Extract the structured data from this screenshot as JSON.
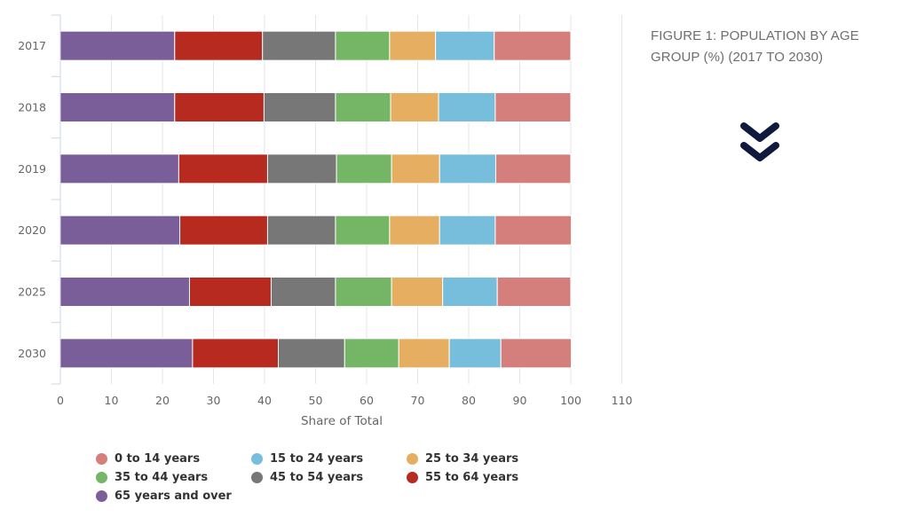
{
  "chart_data": {
    "type": "bar",
    "orientation": "horizontal",
    "stacked": true,
    "title": "FIGURE 1: POPULATION BY AGE GROUP (%) (2017 TO 2030)",
    "xlabel": "Share of Total",
    "ylabel": "",
    "xlim": [
      0,
      110
    ],
    "xticks": [
      "0",
      "10",
      "20",
      "30",
      "40",
      "50",
      "60",
      "70",
      "80",
      "90",
      "100",
      "110"
    ],
    "grid": true,
    "legend_position": "bottom",
    "categories": [
      "2017",
      "2018",
      "2019",
      "2020",
      "2025",
      "2030"
    ],
    "series": [
      {
        "name": "0 to 14 years",
        "color": "#d47f7b",
        "values": [
          15.0,
          14.8,
          14.7,
          14.9,
          14.4,
          13.8
        ]
      },
      {
        "name": "15 to 24 years",
        "color": "#77bddc",
        "values": [
          11.5,
          11.1,
          11.0,
          10.9,
          10.7,
          10.1
        ]
      },
      {
        "name": "25 to 34 years",
        "color": "#e6ae60",
        "values": [
          9.0,
          9.4,
          9.4,
          9.8,
          10.0,
          9.9
        ]
      },
      {
        "name": "35 to 44 years",
        "color": "#75b666",
        "values": [
          10.6,
          10.8,
          10.8,
          10.6,
          11.0,
          10.6
        ]
      },
      {
        "name": "45 to 54 years",
        "color": "#777777",
        "values": [
          14.3,
          14.0,
          13.5,
          13.3,
          12.6,
          13.0
        ]
      },
      {
        "name": "55 to 64 years",
        "color": "#b72a20",
        "values": [
          17.2,
          17.5,
          17.4,
          17.2,
          16.0,
          16.8
        ]
      },
      {
        "name": "65 years and over",
        "color": "#7a5e99",
        "values": [
          22.4,
          22.4,
          23.2,
          23.4,
          25.3,
          25.9
        ]
      }
    ],
    "stack_order": [
      "65 years and over",
      "55 to 64 years",
      "45 to 54 years",
      "35 to 44 years",
      "25 to 34 years",
      "15 to 24 years",
      "0 to 14 years"
    ]
  },
  "panel": {
    "title": "FIGURE 1: POPULATION BY AGE GROUP (%) (2017 TO 2030)",
    "scroll_icon": "double-chevron-down-icon",
    "scroll_icon_color": "#0f1a3c"
  }
}
